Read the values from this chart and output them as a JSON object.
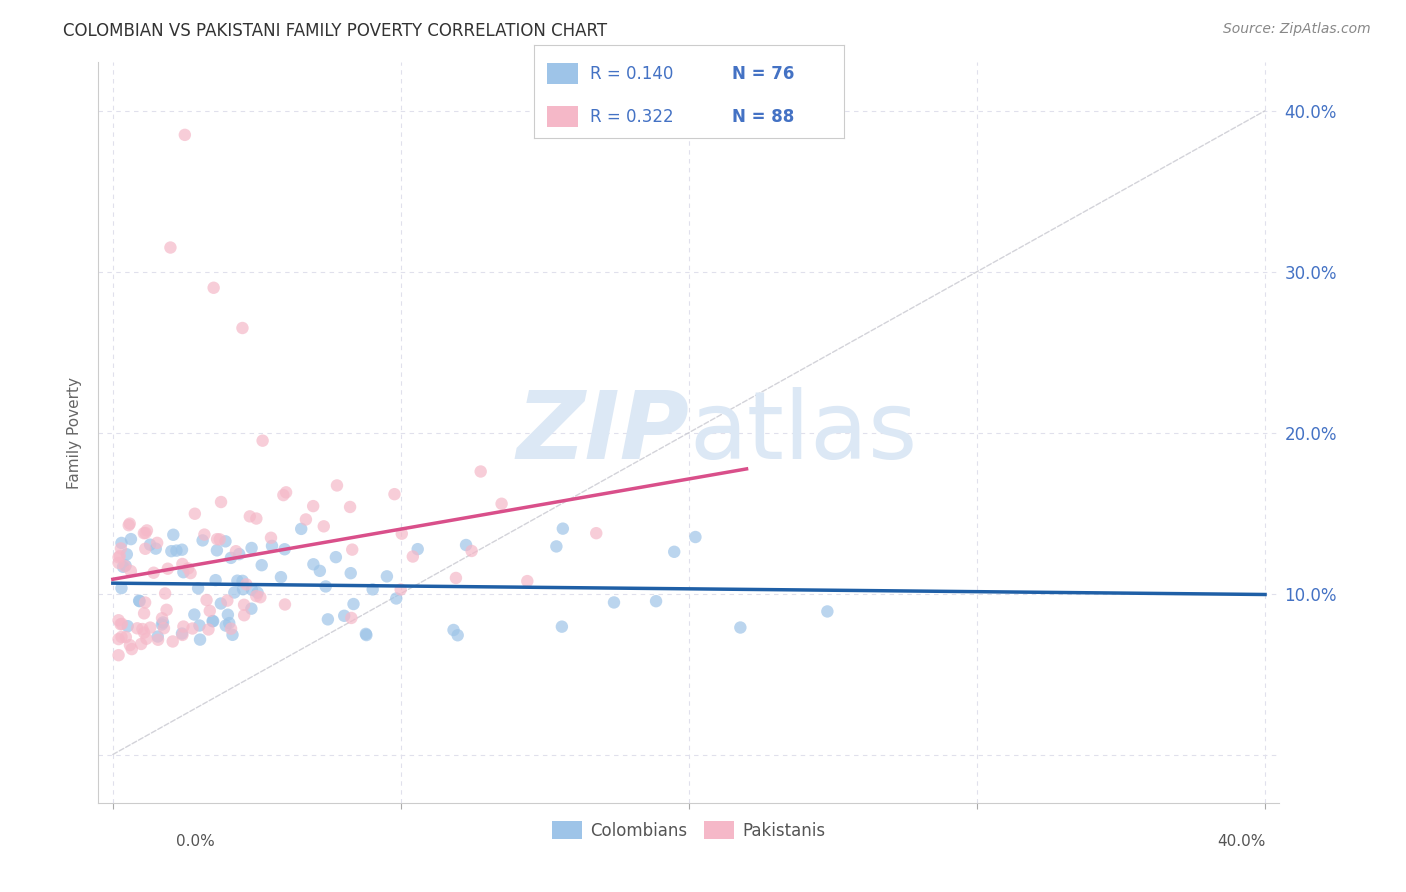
{
  "title": "COLOMBIAN VS PAKISTANI FAMILY POVERTY CORRELATION CHART",
  "source": "Source: ZipAtlas.com",
  "ylabel": "Family Poverty",
  "xlim": [
    -0.005,
    0.405
  ],
  "ylim": [
    -0.03,
    0.43
  ],
  "colombian_R": 0.14,
  "colombian_N": 76,
  "pakistani_R": 0.322,
  "pakistani_N": 88,
  "colombian_color": "#9ec4e8",
  "pakistani_color": "#f5b8c8",
  "colombian_line_color": "#1f5fa6",
  "pakistani_line_color": "#d94f8a",
  "diagonal_line_color": "#c8c8d0",
  "watermark_zip": "ZIP",
  "watermark_atlas": "atlas",
  "watermark_color": "#dce8f5",
  "background_color": "#ffffff",
  "grid_color": "#e0e0ec",
  "tick_label_color": "#4472c4",
  "ylabel_color": "#666666",
  "title_color": "#333333",
  "source_color": "#888888",
  "legend_border_color": "#cccccc",
  "colombians_label": "Colombians",
  "pakistanis_label": "Pakistanis"
}
